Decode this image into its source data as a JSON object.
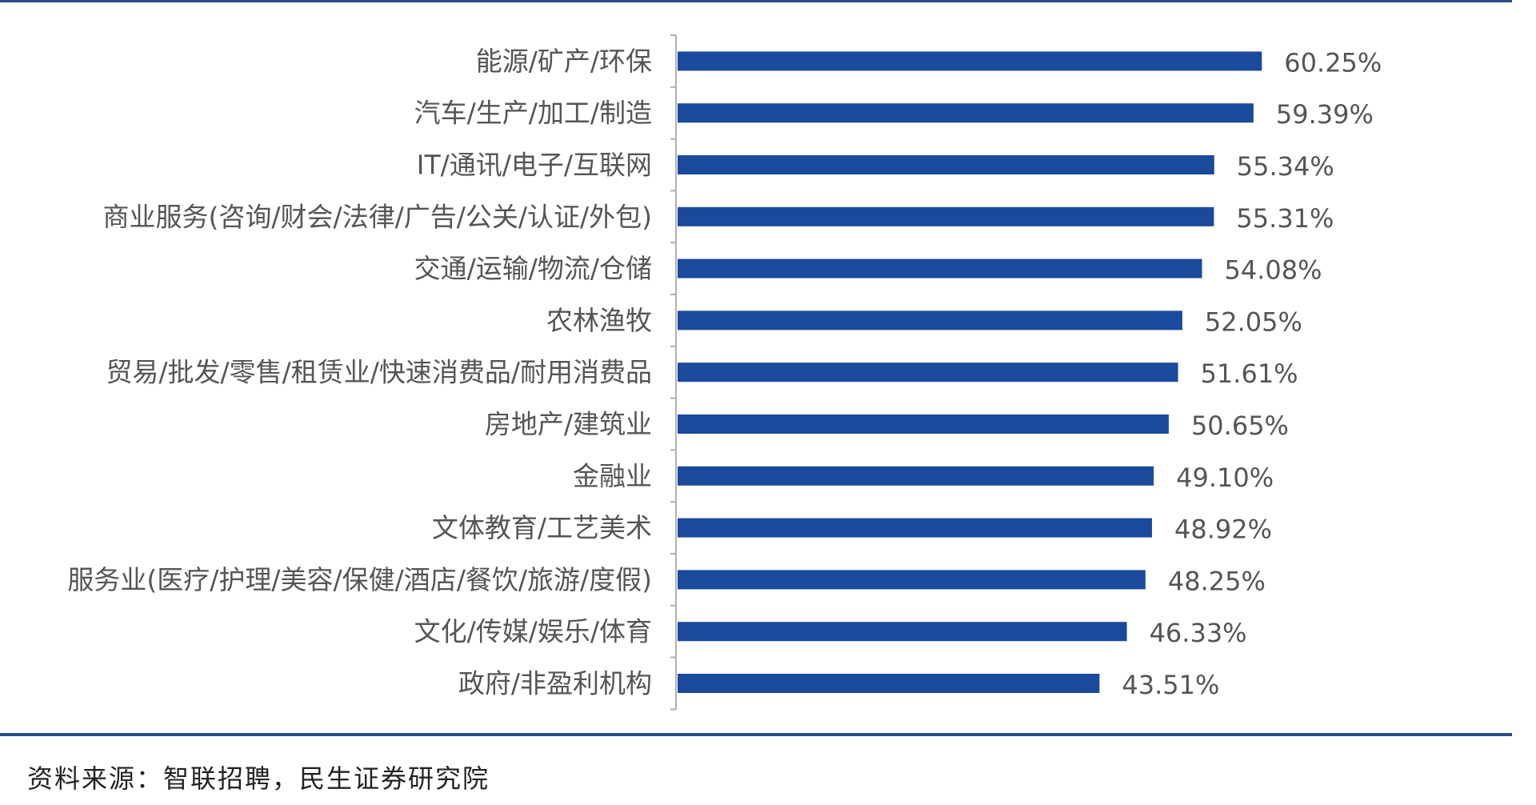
{
  "chart_data": {
    "type": "bar",
    "orientation": "horizontal",
    "categories": [
      "能源/矿产/环保",
      "汽车/生产/加工/制造",
      "IT/通讯/电子/互联网",
      "商业服务(咨询/财会/法律/广告/公关/认证/外包)",
      "交通/运输/物流/仓储",
      "农林渔牧",
      "贸易/批发/零售/租赁业/快速消费品/耐用消费品",
      "房地产/建筑业",
      "金融业",
      "文体教育/工艺美术",
      "服务业(医疗/护理/美容/保健/酒店/餐饮/旅游/度假)",
      "文化/传媒/娱乐/体育",
      "政府/非盈利机构"
    ],
    "values": [
      60.25,
      59.39,
      55.34,
      55.31,
      54.08,
      52.05,
      51.61,
      50.65,
      49.1,
      48.92,
      48.25,
      46.33,
      43.51
    ],
    "value_labels": [
      "60.25%",
      "59.39%",
      "55.34%",
      "55.31%",
      "54.08%",
      "52.05%",
      "51.61%",
      "50.65%",
      "49.10%",
      "48.92%",
      "48.25%",
      "46.33%",
      "43.51%"
    ],
    "xlim": [
      0,
      66
    ],
    "bar_color": "#1a4a9b",
    "grid": false,
    "legend": "none",
    "source": "资料来源：智联招聘，民生证券研究院"
  }
}
